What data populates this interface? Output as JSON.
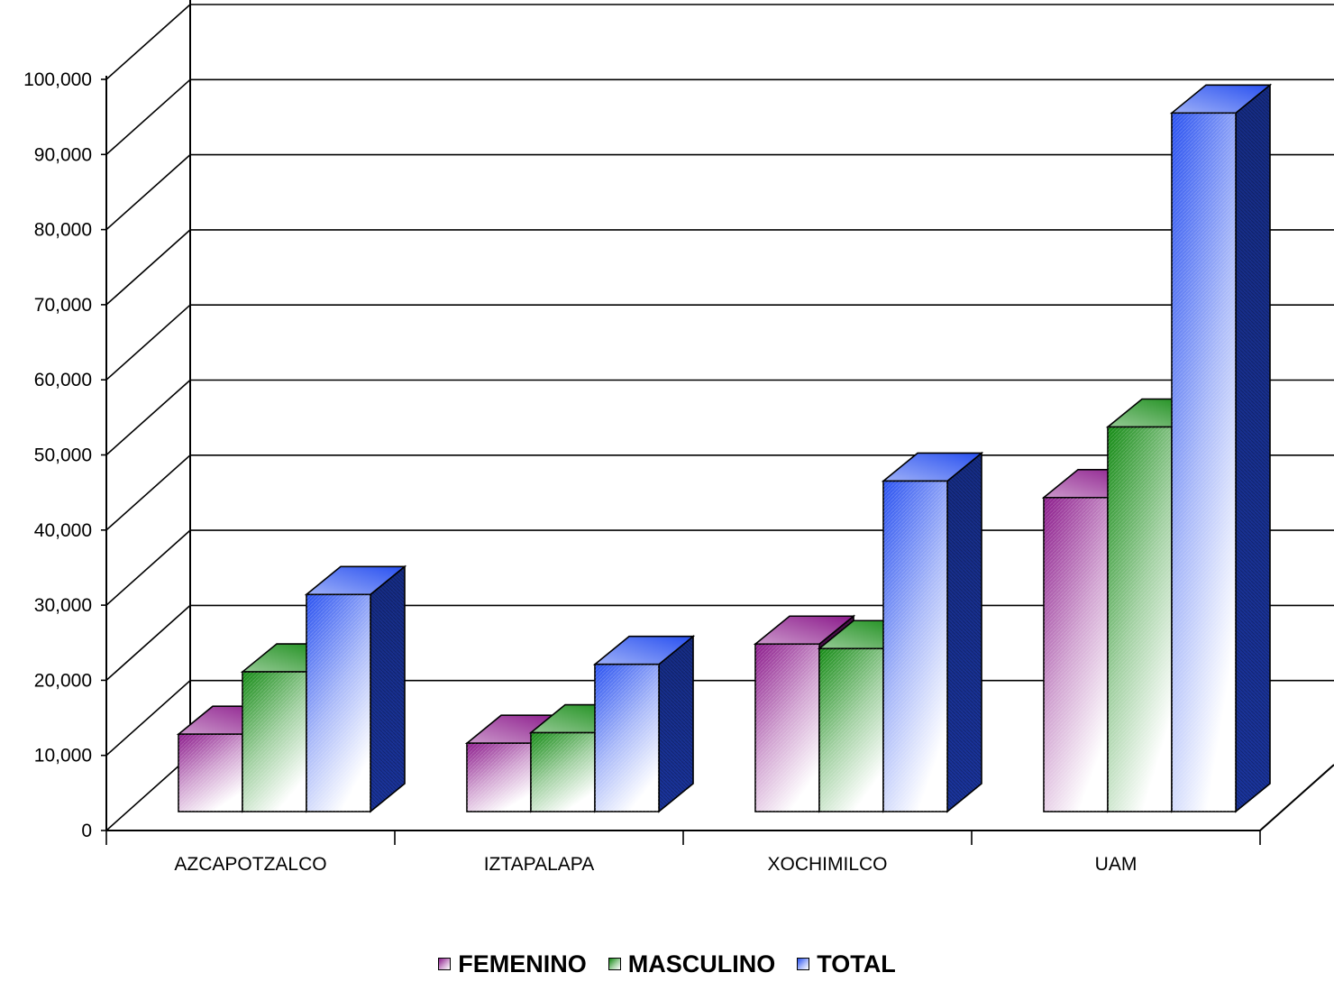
{
  "chart_data": {
    "type": "bar",
    "categories": [
      "AZCAPOTZALCO",
      "IZTAPALAPA",
      "XOCHIMILCO",
      "UAM"
    ],
    "series": [
      {
        "name": "FEMENINO",
        "values": [
          10300,
          9100,
          22300,
          41800
        ],
        "color": "#8B1A8B"
      },
      {
        "name": "MASCULINO",
        "values": [
          18600,
          10500,
          21700,
          51200
        ],
        "color": "#138A13"
      },
      {
        "name": "TOTAL",
        "values": [
          28900,
          19600,
          44000,
          93000
        ],
        "color": "#2850F0"
      }
    ],
    "yticks": [
      "0",
      "10,000",
      "20,000",
      "30,000",
      "40,000",
      "50,000",
      "60,000",
      "70,000",
      "80,000",
      "90,000",
      "100,000"
    ],
    "ylim": [
      0,
      100000
    ],
    "grid": true,
    "legend_position": "bottom"
  }
}
